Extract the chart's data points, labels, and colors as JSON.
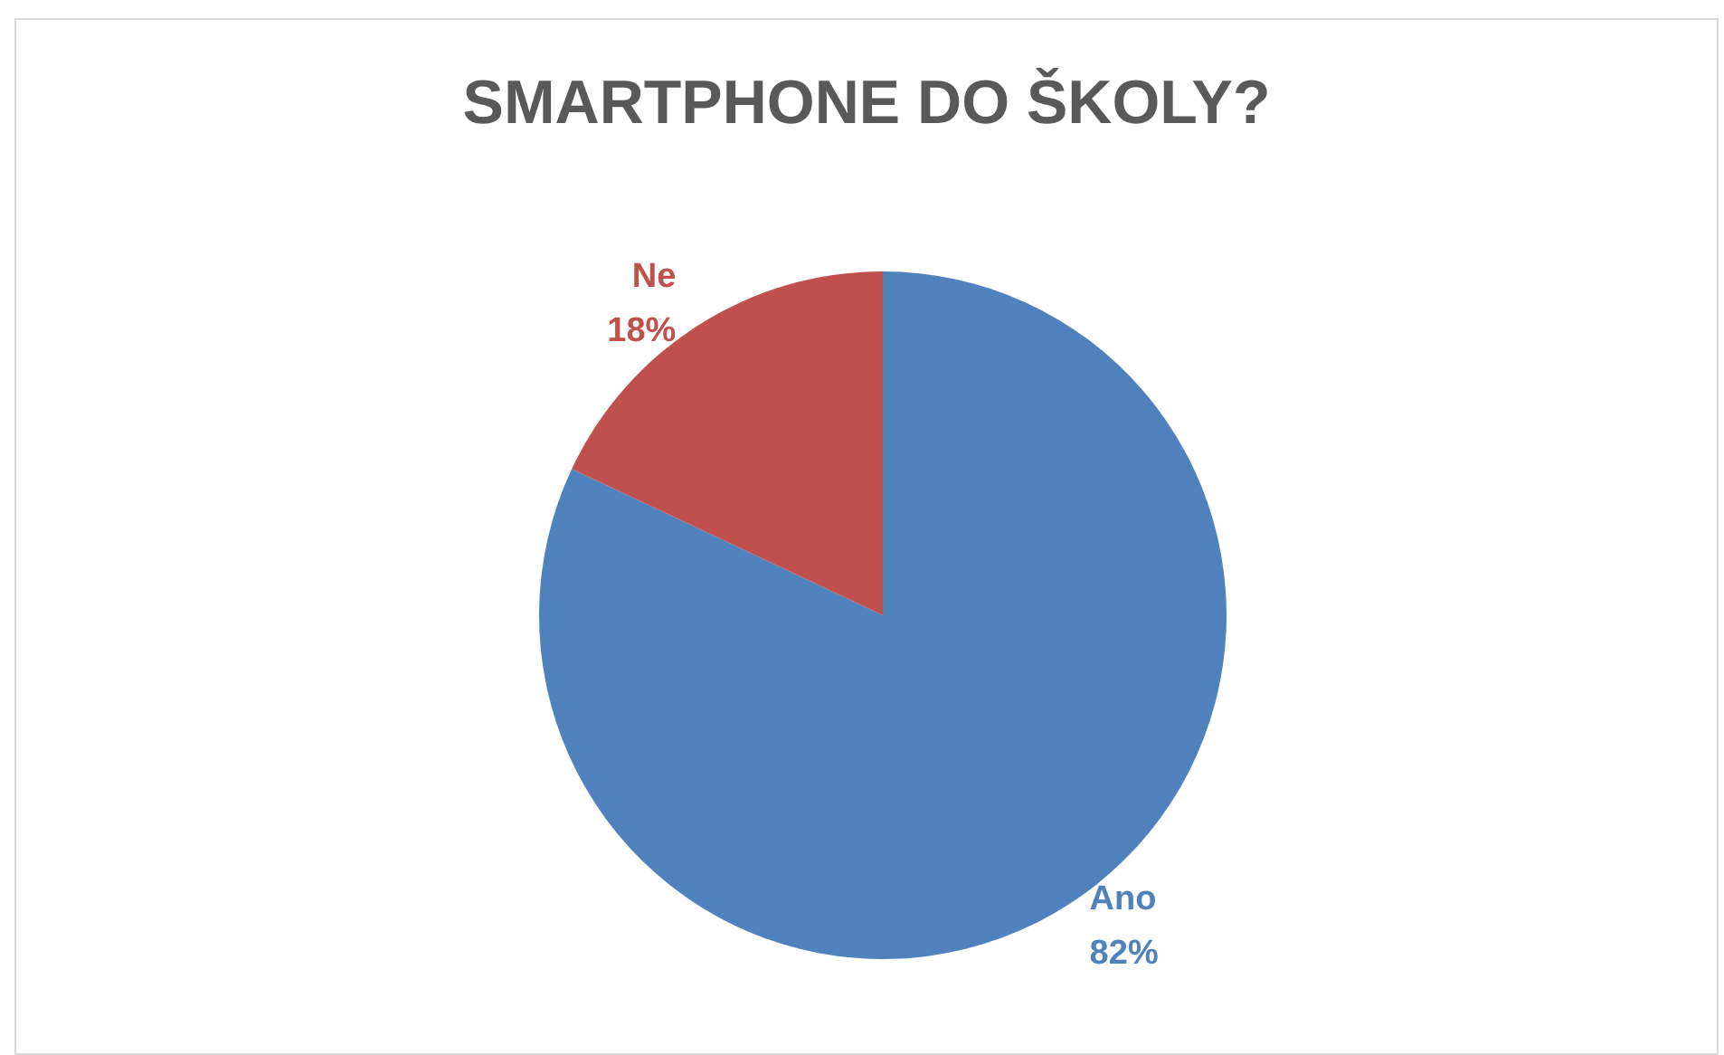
{
  "chart_data": {
    "type": "pie",
    "title": "SMARTPHONE DO ŠKOLY?",
    "categories": [
      "Ano",
      "Ne"
    ],
    "values": [
      82,
      18
    ],
    "colors": [
      "#4f81bd",
      "#c0504d"
    ],
    "value_labels": [
      "82%",
      "18%"
    ],
    "legend": false
  }
}
